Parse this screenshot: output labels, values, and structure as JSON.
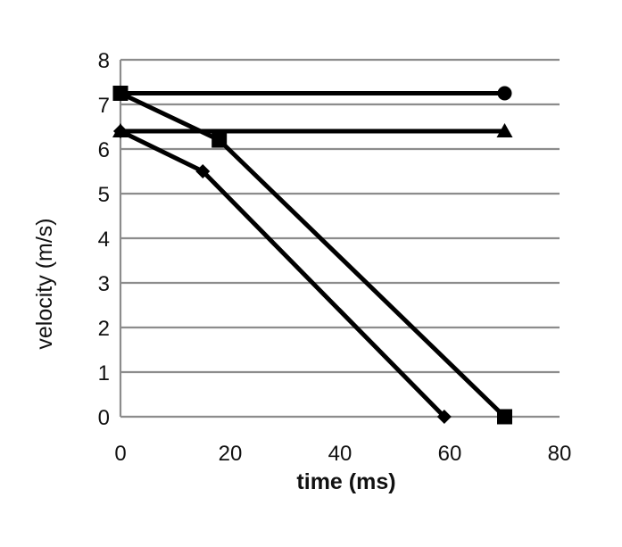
{
  "chart_data": {
    "type": "line",
    "title": "",
    "xlabel": "time (ms)",
    "ylabel": "velocity (m/s)",
    "xlim": [
      0,
      80
    ],
    "ylim": [
      0,
      8
    ],
    "x_ticks": [
      0,
      20,
      40,
      60,
      80
    ],
    "y_ticks": [
      0,
      1,
      2,
      3,
      4,
      5,
      6,
      7,
      8
    ],
    "grid": "horizontal",
    "legend": "none",
    "series": [
      {
        "marker": "circle",
        "points": [
          [
            0,
            7.25
          ],
          [
            70,
            7.25
          ]
        ]
      },
      {
        "marker": "triangle",
        "points": [
          [
            0,
            6.4
          ],
          [
            70,
            6.4
          ]
        ]
      },
      {
        "marker": "square",
        "points": [
          [
            0,
            7.25
          ],
          [
            18,
            6.2
          ],
          [
            70,
            0
          ]
        ]
      },
      {
        "marker": "diamond",
        "points": [
          [
            0,
            6.4
          ],
          [
            15,
            5.5
          ],
          [
            59,
            0
          ]
        ]
      }
    ]
  }
}
